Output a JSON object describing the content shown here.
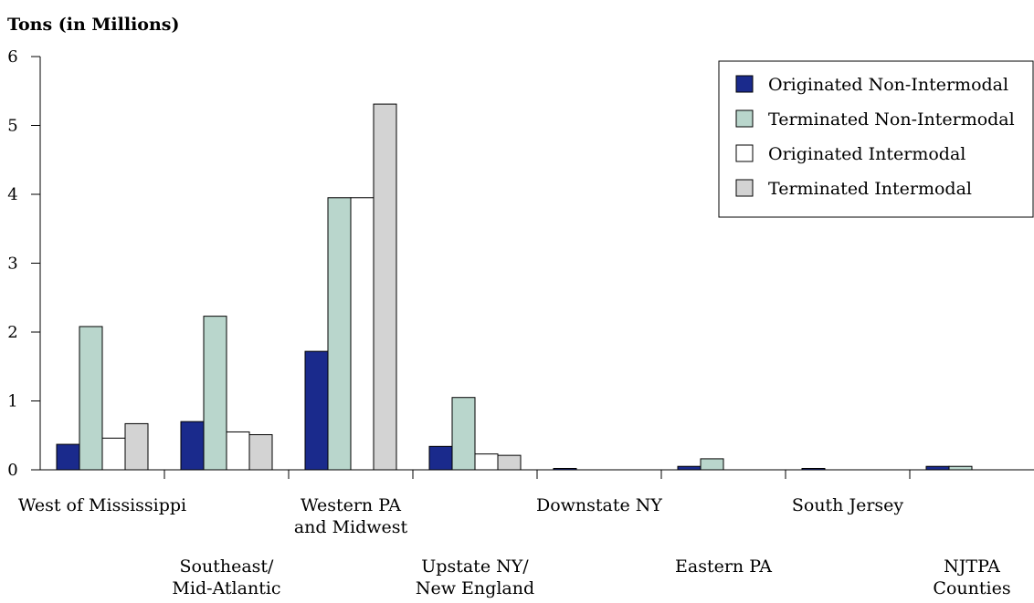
{
  "chart_data": {
    "type": "bar",
    "ylabel": "Tons (in Millions)",
    "xlabel": "",
    "title": "",
    "ylim": [
      0,
      6
    ],
    "yticks": [
      0,
      1,
      2,
      3,
      4,
      5,
      6
    ],
    "grid": false,
    "legend_position": "top-right",
    "categories": [
      [
        "West of Mississippi"
      ],
      [
        "Southeast/",
        "Mid-Atlantic"
      ],
      [
        "Western PA",
        "and Midwest"
      ],
      [
        "Upstate NY/",
        "New England"
      ],
      [
        "Downstate NY"
      ],
      [
        "Eastern PA"
      ],
      [
        "South Jersey"
      ],
      [
        "NJTPA",
        "Counties"
      ]
    ],
    "series": [
      {
        "name": "Originated Non-Intermodal",
        "color": "#1a2a8c",
        "values": [
          0.37,
          0.7,
          1.72,
          0.34,
          0.02,
          0.05,
          0.02,
          0.05
        ]
      },
      {
        "name": "Terminated Non-Intermodal",
        "color": "#b9d6cc",
        "values": [
          2.08,
          2.23,
          3.95,
          1.05,
          0.0,
          0.16,
          0.0,
          0.05
        ]
      },
      {
        "name": "Originated Intermodal",
        "color": "#ffffff",
        "values": [
          0.46,
          0.55,
          3.95,
          0.23,
          0.0,
          0.0,
          0.0,
          0.0
        ]
      },
      {
        "name": "Terminated Intermodal",
        "color": "#d3d3d3",
        "values": [
          0.67,
          0.51,
          5.31,
          0.21,
          0.0,
          0.0,
          0.0,
          0.0
        ]
      }
    ]
  }
}
